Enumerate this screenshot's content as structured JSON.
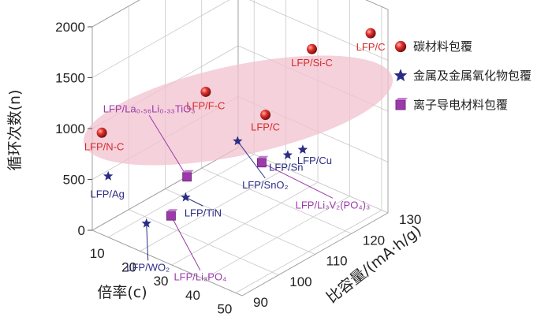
{
  "chart_data": {
    "type": "scatter",
    "title": "",
    "xlabel": "倍率(c)",
    "ylabel": "比容量/(mA·h/g)",
    "zlabel": "循环次数(n)",
    "x_ticks": [
      "10",
      "20",
      "30",
      "40",
      "50"
    ],
    "y_ticks": [
      "90",
      "100",
      "110",
      "120",
      "130"
    ],
    "z_ticks": [
      "0",
      "500",
      "1000",
      "1500",
      "2000"
    ],
    "xlim": [
      5,
      52
    ],
    "ylim": [
      90,
      130
    ],
    "zlim": [
      0,
      2000
    ],
    "grid": true,
    "legend_position": "right",
    "series": [
      {
        "name": "碳材料包覆",
        "marker": "sphere",
        "color": "#d42a2a",
        "points": [
          {
            "label": "LFP/N-C",
            "x": 8,
            "y": 90,
            "z": 1000
          },
          {
            "label": "LFP/F-C",
            "x": 20,
            "y": 108,
            "z": 1200
          },
          {
            "label": "LFP/C",
            "x": 33,
            "y": 113,
            "z": 1050
          },
          {
            "label": "LFP/Si-C",
            "x": 35,
            "y": 124,
            "z": 1500
          },
          {
            "label": "LFP/C",
            "x": 50,
            "y": 127,
            "z": 1800
          }
        ]
      },
      {
        "name": "金属及金属氧化物包覆",
        "marker": "star",
        "color": "#2b2c85",
        "points": [
          {
            "label": "LFP/Ag",
            "x": 10,
            "y": 90,
            "z": 600
          },
          {
            "label": "LFP/WO₂",
            "x": 22,
            "y": 90,
            "z": 300
          },
          {
            "label": "LFP/TiN",
            "x": 24,
            "y": 99,
            "z": 400
          },
          {
            "label": "LFP/SnO₂",
            "x": 22,
            "y": 115,
            "z": 600
          },
          {
            "label": "LFP/Sn",
            "x": 40,
            "y": 113,
            "z": 750
          },
          {
            "label": "LFP/Cu",
            "x": 47,
            "y": 111,
            "z": 940
          }
        ]
      },
      {
        "name": "离子导电材料包覆",
        "marker": "cube",
        "color": "#9b3aa8",
        "points": [
          {
            "label": "LFP/La₀.₅₆Li₀.₃₃TiO₃",
            "x": 21,
            "y": 102,
            "z": 500
          },
          {
            "label": "LFP/Li₃PO₄",
            "x": 24,
            "y": 95,
            "z": 300
          },
          {
            "label": "LFP/Li₃V₂(PO₄)₃",
            "x": 33,
            "y": 112,
            "z": 600
          }
        ]
      }
    ]
  }
}
